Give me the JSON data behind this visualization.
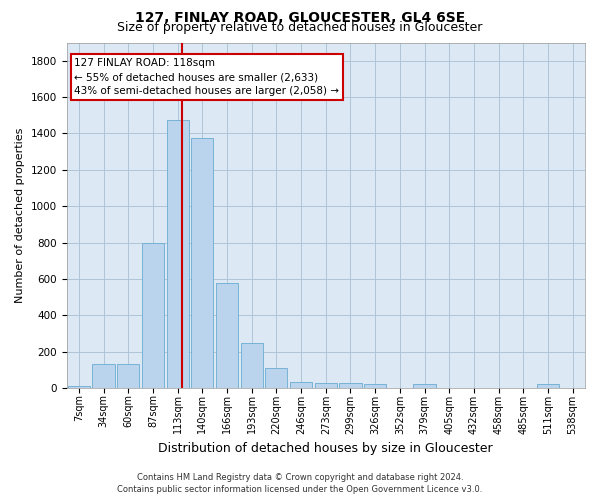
{
  "title1": "127, FINLAY ROAD, GLOUCESTER, GL4 6SE",
  "title2": "Size of property relative to detached houses in Gloucester",
  "xlabel": "Distribution of detached houses by size in Gloucester",
  "ylabel": "Number of detached properties",
  "categories": [
    "7sqm",
    "34sqm",
    "60sqm",
    "87sqm",
    "113sqm",
    "140sqm",
    "166sqm",
    "193sqm",
    "220sqm",
    "246sqm",
    "273sqm",
    "299sqm",
    "326sqm",
    "352sqm",
    "379sqm",
    "405sqm",
    "432sqm",
    "458sqm",
    "485sqm",
    "511sqm",
    "538sqm"
  ],
  "values": [
    10,
    130,
    130,
    795,
    1475,
    1375,
    575,
    250,
    110,
    35,
    30,
    30,
    20,
    0,
    20,
    0,
    0,
    0,
    0,
    20,
    0
  ],
  "bar_color": "#bad4ed",
  "bar_edge_color": "#6aabd2",
  "vline_color": "#cc0000",
  "annotation_line1": "127 FINLAY ROAD: 118sqm",
  "annotation_line2": "← 55% of detached houses are smaller (2,633)",
  "annotation_line3": "43% of semi-detached houses are larger (2,058) →",
  "annotation_box_color": "#cc0000",
  "ylim": [
    0,
    1900
  ],
  "yticks": [
    0,
    200,
    400,
    600,
    800,
    1000,
    1200,
    1400,
    1600,
    1800
  ],
  "footer1": "Contains HM Land Registry data © Crown copyright and database right 2024.",
  "footer2": "Contains public sector information licensed under the Open Government Licence v3.0.",
  "bg_color": "#ffffff",
  "plot_bg_color": "#dce9f5",
  "grid_color": "#b0c4d8",
  "title1_fontsize": 10,
  "title2_fontsize": 9,
  "ylabel_fontsize": 8,
  "xlabel_fontsize": 9,
  "tick_fontsize": 7,
  "ann_fontsize": 7.5,
  "footer_fontsize": 6
}
